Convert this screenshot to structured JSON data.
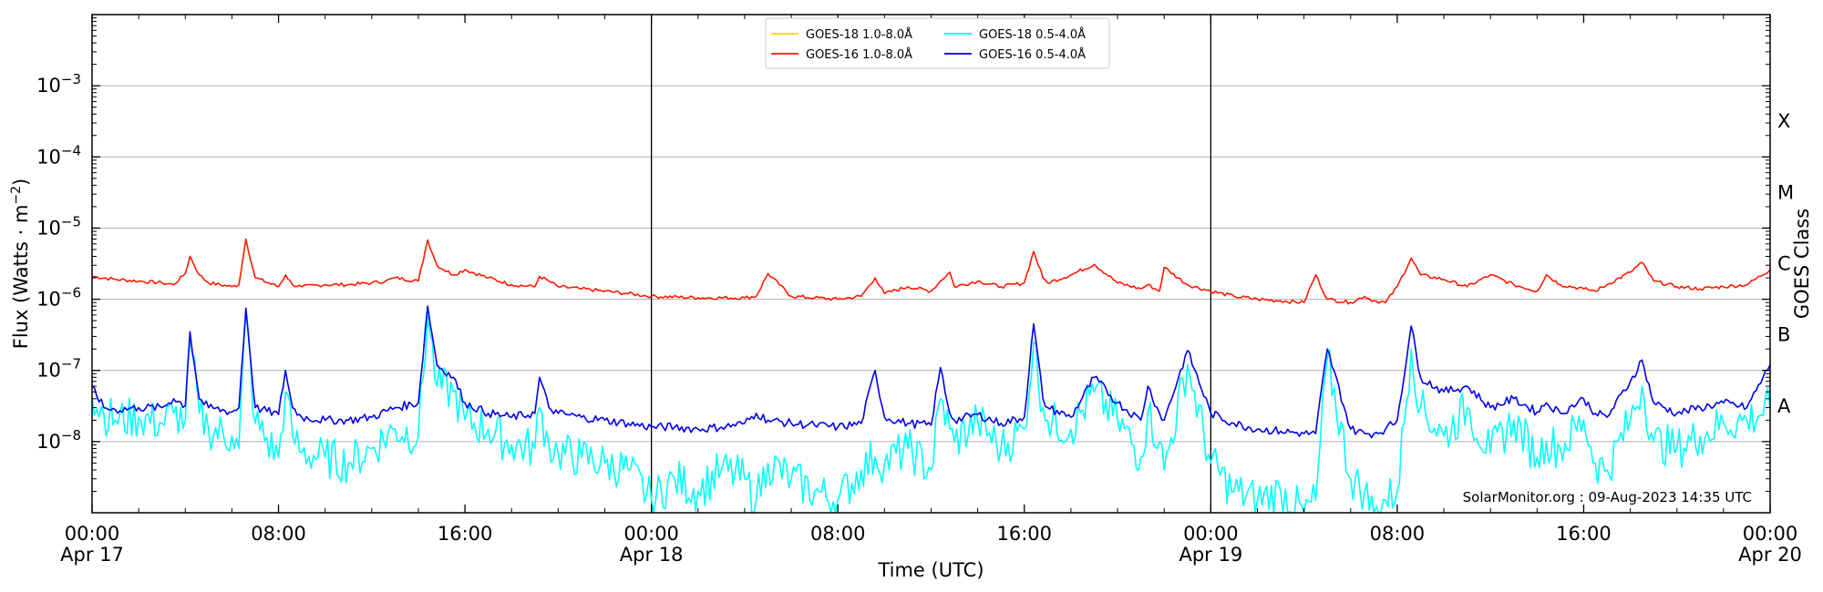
{
  "chart_data": {
    "type": "line",
    "xlabel": "Time (UTC)",
    "ylabel": "Flux (Watts · m",
    "ylabel_sup": "−2",
    "ylabel_close": ")",
    "right_axis_label": "GOES Class",
    "y_scale": "log",
    "ylim": [
      1e-09,
      0.01
    ],
    "y_ticks": [
      {
        "exp": -8,
        "base": "10",
        "sup": "−8"
      },
      {
        "exp": -7,
        "base": "10",
        "sup": "−7"
      },
      {
        "exp": -6,
        "base": "10",
        "sup": "−6"
      },
      {
        "exp": -5,
        "base": "10",
        "sup": "−5"
      },
      {
        "exp": -4,
        "base": "10",
        "sup": "−4"
      },
      {
        "exp": -3,
        "base": "10",
        "sup": "−3"
      }
    ],
    "goes_classes": [
      {
        "label": "A",
        "exp": -7.5
      },
      {
        "label": "B",
        "exp": -6.5
      },
      {
        "label": "C",
        "exp": -5.5
      },
      {
        "label": "M",
        "exp": -4.5
      },
      {
        "label": "X",
        "exp": -3.5
      }
    ],
    "x_range_hours": [
      0,
      72
    ],
    "x_ticks": [
      {
        "h": 0,
        "line1": "00:00",
        "line2": "Apr 17"
      },
      {
        "h": 8,
        "line1": "08:00",
        "line2": ""
      },
      {
        "h": 16,
        "line1": "16:00",
        "line2": ""
      },
      {
        "h": 24,
        "line1": "00:00",
        "line2": "Apr 18"
      },
      {
        "h": 32,
        "line1": "08:00",
        "line2": ""
      },
      {
        "h": 40,
        "line1": "16:00",
        "line2": ""
      },
      {
        "h": 48,
        "line1": "00:00",
        "line2": "Apr 19"
      },
      {
        "h": 56,
        "line1": "08:00",
        "line2": ""
      },
      {
        "h": 64,
        "line1": "16:00",
        "line2": ""
      },
      {
        "h": 72,
        "line1": "00:00",
        "line2": "Apr 20"
      }
    ],
    "day_boundaries_h": [
      24,
      48
    ],
    "grid": "horizontal",
    "legend_position": "top-center",
    "series": [
      {
        "name": "GOES-18 1.0-8.0Å",
        "color": "#ffd700",
        "hours": [],
        "values": []
      },
      {
        "name": "GOES-16 1.0-8.0Å",
        "color": "#ff1a00",
        "hours": [
          0,
          1,
          2,
          3,
          3.5,
          4,
          4.2,
          4.6,
          5,
          6,
          6.3,
          6.6,
          7,
          8,
          8.3,
          8.6,
          9,
          10,
          11,
          12,
          12.6,
          13,
          14,
          14.4,
          14.8,
          15.5,
          16,
          17,
          18,
          19,
          19.2,
          19.6,
          20,
          21,
          22,
          23,
          24,
          26,
          28,
          28.5,
          29,
          30,
          31,
          32,
          33,
          33.6,
          34,
          35,
          36,
          36.4,
          36.8,
          37,
          38,
          39,
          40,
          40.4,
          40.8,
          41,
          42,
          43,
          44,
          45,
          45.3,
          45.8,
          46,
          47,
          48,
          49,
          50,
          51,
          52,
          52.5,
          53,
          54,
          54.6,
          55,
          55.5,
          56,
          56.6,
          57,
          58,
          59,
          60,
          61,
          62,
          62.4,
          63,
          64,
          64.5,
          65,
          66,
          66.5,
          67,
          68,
          69,
          70,
          71,
          72
        ],
        "values": [
          2.1e-06,
          1.9e-06,
          1.8e-06,
          1.7e-06,
          1.6e-06,
          2.3e-06,
          4e-06,
          2.2e-06,
          1.7e-06,
          1.5e-06,
          1.6e-06,
          7e-06,
          2e-06,
          1.5e-06,
          2.2e-06,
          1.6e-06,
          1.5e-06,
          1.6e-06,
          1.6e-06,
          1.7e-06,
          1.8e-06,
          2e-06,
          1.8e-06,
          6.8e-06,
          3e-06,
          2.2e-06,
          2.6e-06,
          2e-06,
          1.6e-06,
          1.5e-06,
          2.1e-06,
          1.8e-06,
          1.5e-06,
          1.4e-06,
          1.3e-06,
          1.2e-06,
          1.1e-06,
          1.05e-06,
          1.05e-06,
          1.1e-06,
          2.3e-06,
          1.1e-06,
          1.05e-06,
          1e-06,
          1.1e-06,
          2e-06,
          1.2e-06,
          1.5e-06,
          1.3e-06,
          1.8e-06,
          2.4e-06,
          1.5e-06,
          1.8e-06,
          1.5e-06,
          1.7e-06,
          4.7e-06,
          2e-06,
          1.7e-06,
          2.2e-06,
          3.1e-06,
          1.7e-06,
          1.4e-06,
          1.6e-06,
          1.3e-06,
          2.8e-06,
          1.6e-06,
          1.3e-06,
          1.1e-06,
          1e-06,
          9.5e-07,
          9e-07,
          2.2e-06,
          1e-06,
          9e-07,
          1.1e-06,
          9.5e-07,
          9e-07,
          1.5e-06,
          3.8e-06,
          2.2e-06,
          1.9e-06,
          1.5e-06,
          2.2e-06,
          1.6e-06,
          1.3e-06,
          2.2e-06,
          1.6e-06,
          1.4e-06,
          1.3e-06,
          1.6e-06,
          2.4e-06,
          3.3e-06,
          1.8e-06,
          1.5e-06,
          1.4e-06,
          1.5e-06,
          1.6e-06,
          2.6e-06
        ]
      },
      {
        "name": "GOES-18 0.5-4.0Å",
        "color": "#00ffff",
        "hours": [
          0,
          0.5,
          1,
          2,
          3,
          3.5,
          4,
          4.2,
          4.6,
          5,
          6,
          6.3,
          6.6,
          7,
          8,
          8.3,
          8.6,
          9,
          10,
          11,
          12,
          13,
          14,
          14.4,
          14.8,
          15.5,
          16,
          17,
          18,
          19,
          19.2,
          19.6,
          20,
          21,
          22,
          23,
          24,
          25,
          26,
          27,
          28,
          28.5,
          29,
          30,
          31,
          32,
          33,
          33.6,
          34,
          35,
          36,
          36.4,
          36.8,
          37,
          38,
          39,
          40,
          40.4,
          40.8,
          41,
          42,
          43,
          44,
          45,
          45.3,
          45.8,
          46,
          47,
          48,
          49,
          50,
          51,
          52,
          52.5,
          53,
          54,
          54.6,
          55,
          55.5,
          56,
          56.6,
          57,
          58,
          59,
          60,
          61,
          62,
          62.4,
          63,
          64,
          64.5,
          65,
          66,
          66.5,
          67,
          68,
          69,
          70,
          71,
          72
        ],
        "values": [
          4e-08,
          2.5e-08,
          2e-08,
          2.2e-08,
          1.8e-08,
          2.5e-08,
          2e-08,
          2.5e-07,
          2.5e-08,
          1.5e-08,
          1.2e-08,
          8e-09,
          6.5e-07,
          1.8e-08,
          6e-09,
          5e-08,
          1.2e-08,
          7e-09,
          6e-09,
          5e-09,
          8e-09,
          1.5e-08,
          1.2e-08,
          6e-07,
          6e-08,
          5e-08,
          2e-08,
          1.5e-08,
          9e-09,
          8e-09,
          3e-08,
          9e-09,
          7e-09,
          6e-09,
          5e-09,
          4e-09,
          1.5e-09,
          3e-09,
          2e-09,
          4e-09,
          3e-09,
          1.5e-09,
          5e-09,
          3e-09,
          2e-09,
          1.5e-09,
          4e-09,
          6e-09,
          5e-09,
          8e-09,
          4e-09,
          4e-08,
          1.5e-08,
          1e-08,
          2e-08,
          8e-09,
          1.5e-08,
          2.5e-07,
          3e-08,
          2e-08,
          1.5e-08,
          5e-08,
          2e-08,
          6e-09,
          2.5e-08,
          1e-08,
          4e-09,
          1.2e-07,
          5e-09,
          2e-09,
          1.5e-09,
          2e-09,
          1e-09,
          1.5e-09,
          1.5e-07,
          3e-09,
          2e-09,
          1e-09,
          1.5e-09,
          2e-09,
          2e-07,
          3e-08,
          1.2e-08,
          3e-08,
          7e-09,
          2e-08,
          6e-09,
          1e-08,
          8e-09,
          2e-08,
          5e-09,
          4e-09,
          2e-08,
          6e-08,
          1e-08,
          8e-09,
          1.2e-08,
          1.8e-08,
          2e-08,
          3e-08
        ]
      },
      {
        "name": "GOES-16 0.5-4.0Å",
        "color": "#0000ee",
        "hours": [
          0,
          0.5,
          1,
          2,
          3,
          3.5,
          4,
          4.2,
          4.6,
          5,
          6,
          6.3,
          6.6,
          7,
          8,
          8.3,
          8.6,
          9,
          10,
          11,
          12,
          13,
          14,
          14.4,
          14.8,
          15.5,
          16,
          17,
          18,
          19,
          19.2,
          19.6,
          20,
          21,
          22,
          23,
          24,
          25,
          26,
          27,
          28,
          28.5,
          29,
          30,
          31,
          32,
          33,
          33.6,
          34,
          35,
          36,
          36.4,
          36.8,
          37,
          38,
          39,
          40,
          40.4,
          40.8,
          41,
          42,
          43,
          44,
          45,
          45.3,
          45.8,
          46,
          47,
          48,
          49,
          50,
          51,
          52,
          52.5,
          53,
          54,
          54.6,
          55,
          55.5,
          56,
          56.6,
          57,
          58,
          59,
          60,
          61,
          62,
          62.4,
          63,
          64,
          64.5,
          65,
          66,
          66.5,
          67,
          68,
          69,
          70,
          71,
          72
        ],
        "values": [
          6e-08,
          3e-08,
          2.8e-08,
          3e-08,
          3e-08,
          4e-08,
          3.2e-08,
          3.5e-07,
          4e-08,
          3e-08,
          2.6e-08,
          3e-08,
          7.5e-07,
          3e-08,
          2.4e-08,
          1e-07,
          3e-08,
          2.2e-08,
          2e-08,
          2e-08,
          2.2e-08,
          3e-08,
          3.5e-08,
          8e-07,
          1.2e-07,
          8e-08,
          3.5e-08,
          2.5e-08,
          2.2e-08,
          2.5e-08,
          8e-08,
          3e-08,
          2.5e-08,
          2.2e-08,
          2e-08,
          1.8e-08,
          1.6e-08,
          1.6e-08,
          1.5e-08,
          1.6e-08,
          1.8e-08,
          2.5e-08,
          2e-08,
          1.8e-08,
          1.7e-08,
          1.6e-08,
          1.8e-08,
          1e-07,
          2.2e-08,
          1.8e-08,
          1.7e-08,
          1.1e-07,
          2.5e-08,
          2e-08,
          2.4e-08,
          1.8e-08,
          2.2e-08,
          4.5e-07,
          4e-08,
          3e-08,
          2.2e-08,
          8e-08,
          3.5e-08,
          2e-08,
          6e-08,
          2.5e-08,
          2e-08,
          1.9e-07,
          2.5e-08,
          1.8e-08,
          1.5e-08,
          1.4e-08,
          1.3e-08,
          1.3e-08,
          2e-07,
          1.5e-08,
          1.3e-08,
          1.3e-08,
          1.5e-08,
          2e-08,
          4.2e-07,
          8e-08,
          5e-08,
          6e-08,
          3e-08,
          4e-08,
          2.6e-08,
          3.5e-08,
          2.5e-08,
          4e-08,
          2.5e-08,
          2.2e-08,
          7e-08,
          1.4e-07,
          3.5e-08,
          2.5e-08,
          3e-08,
          3.5e-08,
          3e-08,
          1.2e-07
        ]
      }
    ],
    "credit": "SolarMonitor.org : 09-Aug-2023 14:35 UTC"
  }
}
